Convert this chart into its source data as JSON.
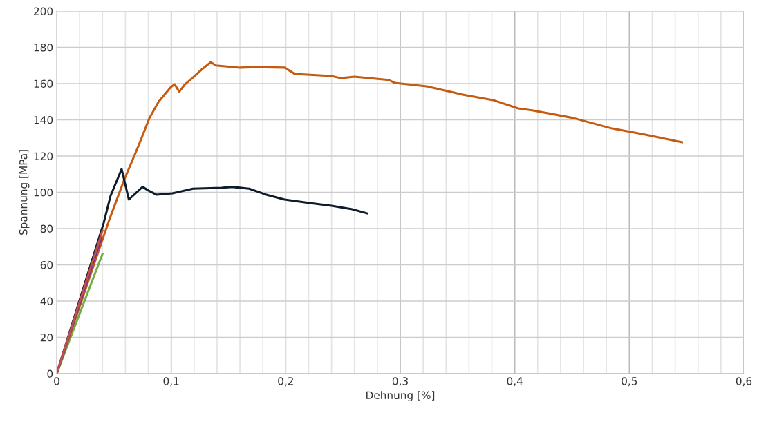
{
  "chart_data": {
    "type": "line",
    "xlabel": "Dehnung [%]",
    "ylabel": "Spannung [MPa]",
    "xlim": [
      0,
      0.6
    ],
    "ylim": [
      0,
      200
    ],
    "xticks": [
      {
        "value": 0,
        "label": "0"
      },
      {
        "value": 0.02,
        "label": null
      },
      {
        "value": 0.04,
        "label": null
      },
      {
        "value": 0.06,
        "label": null
      },
      {
        "value": 0.08,
        "label": null
      },
      {
        "value": 0.1,
        "label": "0,1"
      },
      {
        "value": 0.12,
        "label": null
      },
      {
        "value": 0.14,
        "label": null
      },
      {
        "value": 0.16,
        "label": null
      },
      {
        "value": 0.18,
        "label": null
      },
      {
        "value": 0.2,
        "label": "0,2"
      },
      {
        "value": 0.22,
        "label": null
      },
      {
        "value": 0.24,
        "label": null
      },
      {
        "value": 0.26,
        "label": null
      },
      {
        "value": 0.28,
        "label": null
      },
      {
        "value": 0.3,
        "label": "0,3"
      },
      {
        "value": 0.32,
        "label": null
      },
      {
        "value": 0.34,
        "label": null
      },
      {
        "value": 0.36,
        "label": null
      },
      {
        "value": 0.38,
        "label": null
      },
      {
        "value": 0.4,
        "label": "0,4"
      },
      {
        "value": 0.42,
        "label": null
      },
      {
        "value": 0.44,
        "label": null
      },
      {
        "value": 0.46,
        "label": null
      },
      {
        "value": 0.48,
        "label": null
      },
      {
        "value": 0.5,
        "label": "0,5"
      },
      {
        "value": 0.52,
        "label": null
      },
      {
        "value": 0.54,
        "label": null
      },
      {
        "value": 0.56,
        "label": null
      },
      {
        "value": 0.58,
        "label": null
      },
      {
        "value": 0.6,
        "label": "0,6"
      }
    ],
    "yticks": [
      0,
      20,
      40,
      60,
      80,
      100,
      120,
      140,
      160,
      180,
      200
    ],
    "grid": true,
    "legend": false,
    "marker": "none",
    "line_style": "solid",
    "series": [
      {
        "color": "#70ad47",
        "x": [
          0,
          0.04
        ],
        "values": [
          0,
          66
        ]
      },
      {
        "color": "#c55a11",
        "x": [
          0,
          0.046,
          0.059,
          0.071,
          0.081,
          0.089,
          0.0996,
          0.103,
          0.107,
          0.112,
          0.119,
          0.127,
          0.1346,
          0.139,
          0.16,
          0.174,
          0.199,
          0.208,
          0.24,
          0.248,
          0.26,
          0.29,
          0.295,
          0.323,
          0.356,
          0.381,
          0.403,
          0.416,
          0.451,
          0.485,
          0.511,
          0.546
        ],
        "values": [
          0,
          85,
          107,
          125,
          141,
          150,
          158,
          159.6,
          155.5,
          159.6,
          163.4,
          168,
          171.8,
          170,
          168.8,
          169.1,
          168.8,
          165.3,
          164.2,
          163,
          163.8,
          162,
          160.4,
          158.5,
          153.7,
          150.9,
          146.3,
          145.1,
          141,
          135.2,
          132.2,
          127.6
        ]
      },
      {
        "color": "#0d1b2a",
        "x": [
          0,
          0.041,
          0.047,
          0.0567,
          0.063,
          0.075,
          0.08,
          0.087,
          0.101,
          0.119,
          0.144,
          0.153,
          0.168,
          0.183,
          0.199,
          0.222,
          0.24,
          0.258,
          0.271
        ],
        "values": [
          0,
          83,
          98,
          112.8,
          96,
          103,
          101,
          98.7,
          99.4,
          102,
          102.5,
          103,
          102,
          98.7,
          96,
          94,
          92.6,
          90.7,
          88.4
        ]
      },
      {
        "color": "#7030a0",
        "x": [
          0,
          0.039
        ],
        "values": [
          0,
          75
        ]
      },
      {
        "color": "#c0504d",
        "x": [
          0,
          0.04
        ],
        "values": [
          0,
          79
        ]
      }
    ]
  }
}
